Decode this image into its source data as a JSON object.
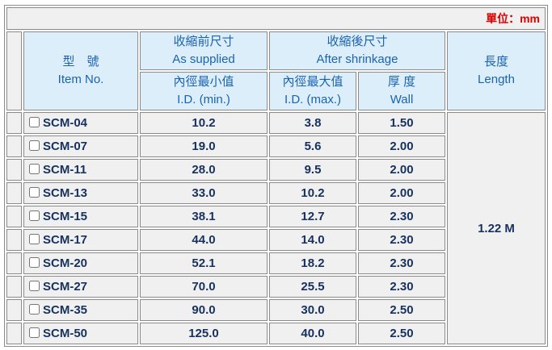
{
  "unit": "單位：mm",
  "header": {
    "item": {
      "zh": "型　號",
      "en": "Item No."
    },
    "supplied": {
      "zh": "收縮前尺寸",
      "en": "As supplied"
    },
    "shrinkage": {
      "zh": "收縮後尺寸",
      "en": "After shrinkage"
    },
    "length": {
      "zh": "長度",
      "en": "Length"
    },
    "id_min": {
      "zh": "內徑最小值",
      "en": "I.D. (min.)"
    },
    "id_max": {
      "zh": "內徑最大值",
      "en": "I.D. (max.)"
    },
    "wall": {
      "zh": "厚 度",
      "en": "Wall"
    }
  },
  "length_value": "1.22 M",
  "table": {
    "rows": [
      [
        "SCM-04",
        "10.2",
        "3.8",
        "1.50"
      ],
      [
        "SCM-07",
        "19.0",
        "5.6",
        "2.00"
      ],
      [
        "SCM-11",
        "28.0",
        "9.5",
        "2.00"
      ],
      [
        "SCM-13",
        "33.0",
        "10.2",
        "2.00"
      ],
      [
        "SCM-15",
        "38.1",
        "12.7",
        "2.30"
      ],
      [
        "SCM-17",
        "44.0",
        "14.0",
        "2.30"
      ],
      [
        "SCM-20",
        "52.1",
        "18.2",
        "2.30"
      ],
      [
        "SCM-27",
        "70.0",
        "25.5",
        "2.30"
      ],
      [
        "SCM-35",
        "90.0",
        "30.0",
        "2.50"
      ],
      [
        "SCM-50",
        "125.0",
        "40.0",
        "2.50"
      ]
    ]
  }
}
